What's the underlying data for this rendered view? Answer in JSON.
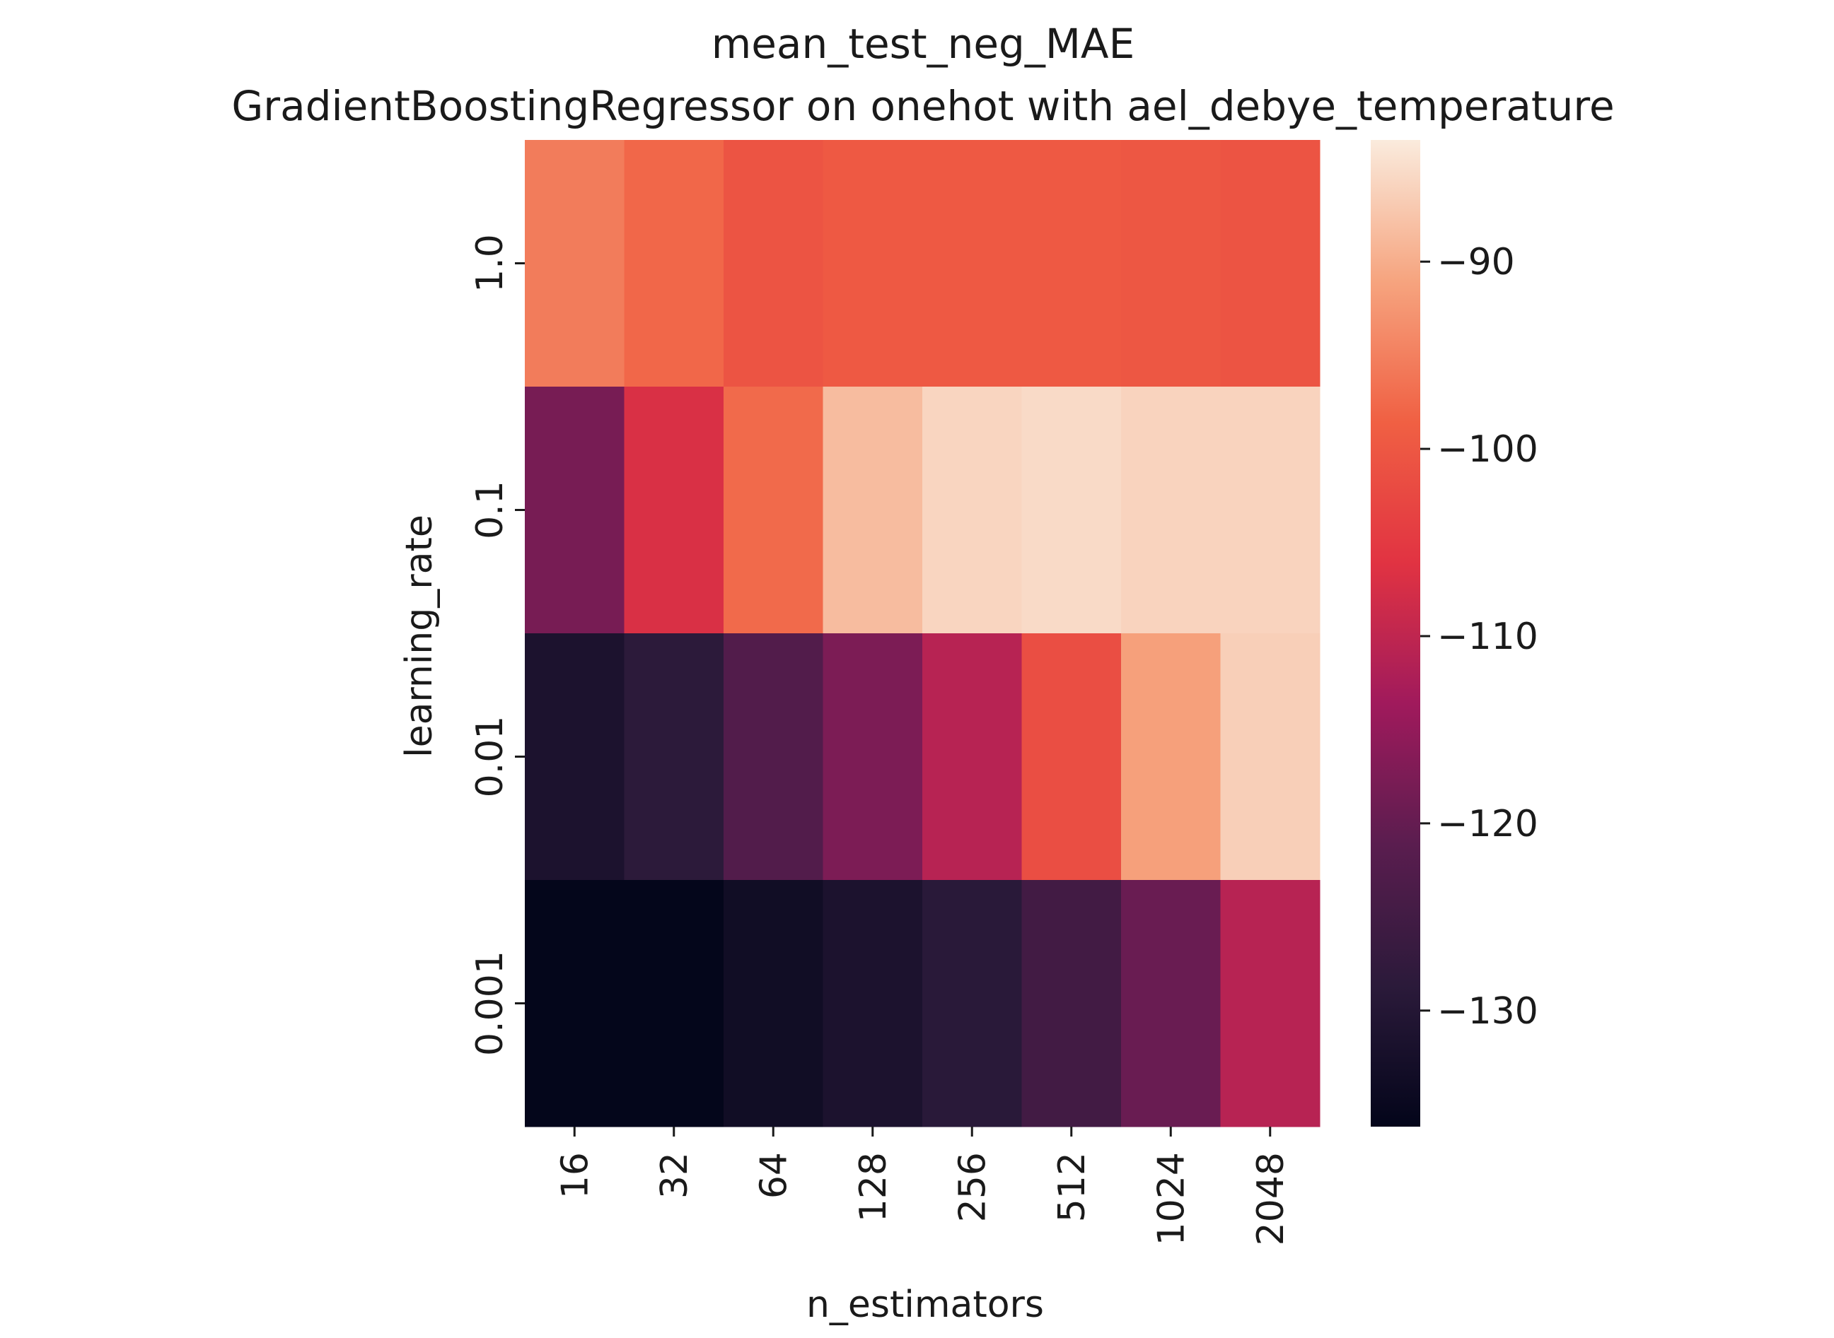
{
  "chart_data": {
    "type": "heatmap",
    "title": "mean_test_neg_MAE",
    "subtitle": "GradientBoostingRegressor on onehot with ael_debye_temperature",
    "xlabel": "n_estimators",
    "ylabel": "learning_rate",
    "x_categories": [
      "16",
      "32",
      "64",
      "128",
      "256",
      "512",
      "1024",
      "2048"
    ],
    "y_categories": [
      "1.0",
      "0.1",
      "0.01",
      "0.001"
    ],
    "values": [
      [
        -95.5,
        -97.8,
        -100.5,
        -99.7,
        -99.7,
        -99.7,
        -100.0,
        -100.5
      ],
      [
        -118.0,
        -107.0,
        -97.5,
        -88.5,
        -85.8,
        -85.3,
        -86.0,
        -86.0
      ],
      [
        -131.5,
        -128.5,
        -122.5,
        -117.5,
        -111.0,
        -101.5,
        -91.5,
        -86.5
      ],
      [
        -136.0,
        -136.0,
        -133.5,
        -131.5,
        -129.0,
        -125.0,
        -119.5,
        -111.0
      ]
    ],
    "colorbar": {
      "vmin": -136.2,
      "vmax": -83.5,
      "ticks": [
        -90,
        -100,
        -110,
        -120,
        -130
      ],
      "tick_labels": [
        "−90",
        "−100",
        "−110",
        "−120",
        "−130"
      ],
      "colormap": [
        "#03051a",
        "#2b1a3a",
        "#5a1d4f",
        "#a01a5c",
        "#e13342",
        "#f06043",
        "#f6a47f",
        "#faebdd"
      ]
    },
    "grid": false,
    "legend": "colorbar-right"
  }
}
